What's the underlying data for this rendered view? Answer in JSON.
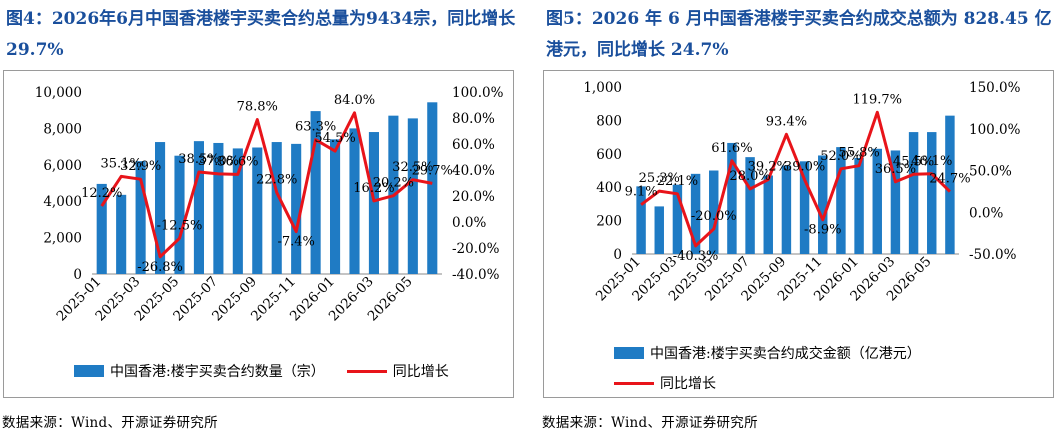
{
  "left": {
    "title": "图4：2026年6月中国香港楼宇买卖合约总量为9434宗，同比增长 29.7%",
    "legend_bar": "中国香港:楼宇买卖合约数量（宗）",
    "legend_line": "同比增长",
    "source": "数据来源：Wind、开源证券研究所"
  },
  "right": {
    "title": "图5：2026 年 6 月中国香港楼宇买卖合约成交总额为 828.45 亿港元，同比增长 24.7%",
    "legend_bar": "中国香港:楼宇买卖合约成交金额（亿港元）",
    "legend_line": "同比增长",
    "source": "数据来源：Wind、开源证券研究所"
  },
  "colors": {
    "bar": "#1f7bc4",
    "line": "#e8141a",
    "title": "#1a4f9c"
  },
  "chart_data": [
    {
      "type": "bar",
      "categories": [
        "2025-01",
        "2025-02",
        "2025-03",
        "2025-04",
        "2025-05",
        "2025-06",
        "2025-07",
        "2025-08",
        "2025-09",
        "2025-10",
        "2025-11",
        "2025-12",
        "2026-01",
        "2026-02",
        "2026-03",
        "2026-04",
        "2026-05",
        "2026-06"
      ],
      "x_tick_labels": [
        "2025-01",
        "2025-03",
        "2025-05",
        "2025-07",
        "2025-09",
        "2025-11",
        "2026-01",
        "2026-03",
        "2026-05"
      ],
      "series": [
        {
          "name": "中国香港:楼宇买卖合约数量（宗）",
          "type": "bar",
          "axis": "left",
          "values": [
            4950,
            4350,
            6200,
            7250,
            6500,
            7300,
            7200,
            6900,
            6950,
            7250,
            7150,
            8950,
            7400,
            8000,
            7800,
            8700,
            8550,
            9434
          ]
        },
        {
          "name": "同比增长",
          "type": "line",
          "axis": "right",
          "values": [
            12.2,
            35.1,
            32.9,
            -26.8,
            -12.5,
            38.5,
            37.0,
            36.6,
            78.8,
            22.8,
            -7.4,
            63.3,
            54.5,
            84.0,
            16.2,
            20.2,
            32.5,
            29.7
          ]
        }
      ],
      "labels": [
        "12.2%",
        "35.1%",
        "32.9%",
        "-26.8%",
        "-12.5%",
        "38.5%",
        "37.0%",
        "36.6%",
        "78.8%",
        "22.8%",
        "-7.4%",
        "63.3%",
        "54.5%",
        "84.0%",
        "16.2%",
        "20.2%",
        "32.5%",
        "29.7%"
      ],
      "ylim_left": [
        0,
        10000
      ],
      "yticks_left": [
        "0",
        "2,000",
        "4,000",
        "6,000",
        "8,000",
        "10,000"
      ],
      "ylim_right": [
        -40,
        100
      ],
      "yticks_right": [
        "-40.0%",
        "-20.0%",
        "0.0%",
        "20.0%",
        "40.0%",
        "60.0%",
        "80.0%",
        "100.0%"
      ],
      "legend": "bottom"
    },
    {
      "type": "bar",
      "categories": [
        "2025-01",
        "2025-02",
        "2025-03",
        "2025-04",
        "2025-05",
        "2025-06",
        "2025-07",
        "2025-08",
        "2025-09",
        "2025-10",
        "2025-11",
        "2025-12",
        "2026-01",
        "2026-02",
        "2026-03",
        "2026-04",
        "2026-05",
        "2026-06"
      ],
      "x_tick_labels": [
        "2025-01",
        "2025-03",
        "2025-05",
        "2025-07",
        "2025-09",
        "2025-11",
        "2026-01",
        "2026-03",
        "2026-05"
      ],
      "series": [
        {
          "name": "中国香港:楼宇买卖合约成交金额（亿港元）",
          "type": "bar",
          "axis": "left",
          "values": [
            405,
            285,
            415,
            480,
            500,
            665,
            580,
            470,
            530,
            555,
            590,
            640,
            575,
            630,
            620,
            730,
            730,
            828.45
          ]
        },
        {
          "name": "同比增长",
          "type": "line",
          "axis": "right",
          "values": [
            9.1,
            25.3,
            22.1,
            -40.3,
            -20.0,
            61.6,
            28.0,
            39.2,
            93.4,
            39.0,
            -8.9,
            52.0,
            55.8,
            119.7,
            36.5,
            45.5,
            46.1,
            24.7
          ]
        }
      ],
      "labels": [
        "9.1%",
        "25.3%",
        "22.1%",
        "-40.3%",
        "-20.0%",
        "61.6%",
        "28.0%",
        "39.2%",
        "93.4%",
        "39.0%",
        "-8.9%",
        "52.0%",
        "55.8%",
        "119.7%",
        "36.5%",
        "45.5%",
        "46.1%",
        "24.7%"
      ],
      "ylim_left": [
        0,
        1000
      ],
      "yticks_left": [
        "0",
        "200",
        "400",
        "600",
        "800",
        "1,000"
      ],
      "ylim_right": [
        -50,
        150
      ],
      "yticks_right": [
        "-50.0%",
        "0.0%",
        "50.0%",
        "100.0%",
        "150.0%"
      ],
      "legend": "bottom"
    }
  ]
}
